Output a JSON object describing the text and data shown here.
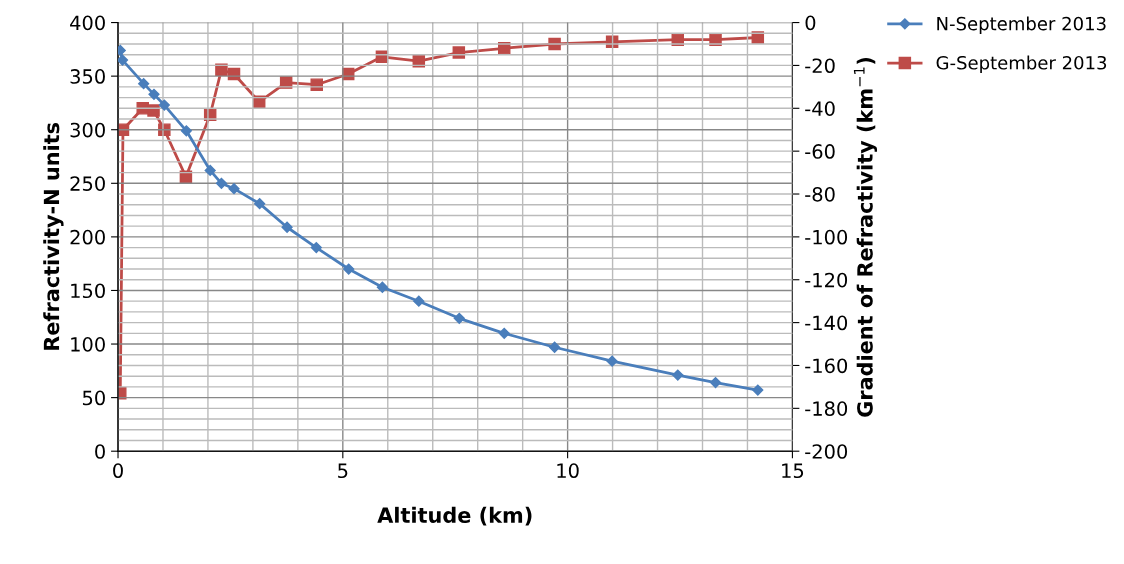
{
  "chart_data": {
    "type": "line",
    "xlabel": "Altitude (km)",
    "ylabel": "Refractivity-N units",
    "y2label": "Gradient of Refractivity (km$^{−1}$)",
    "xlim": [
      0,
      15
    ],
    "xticks": [
      0,
      5,
      10,
      15
    ],
    "ylim": [
      0,
      400
    ],
    "yticks": [
      0,
      50,
      100,
      150,
      200,
      250,
      300,
      350,
      400
    ],
    "y2lim": [
      -200,
      0
    ],
    "y2ticks": [
      -200,
      -180,
      -160,
      -140,
      -120,
      -100,
      -80,
      -60,
      -40,
      -20,
      0
    ],
    "grid": true,
    "legend": "top right",
    "line_style": "solid",
    "series": [
      {
        "name": "N-September 2013",
        "color": "#4a7ebb",
        "marker": "diamond",
        "x": [
          0.05,
          0.1,
          0.57,
          0.8,
          1.03,
          1.52,
          2.05,
          2.3,
          2.58,
          3.15,
          3.76,
          4.41,
          5.13,
          5.88,
          6.69,
          7.59,
          8.59,
          9.71,
          10.99,
          12.45,
          13.29,
          14.23
        ],
        "values": [
          374,
          365,
          343,
          333,
          323,
          299,
          262,
          250,
          245,
          231,
          209,
          190,
          170,
          153,
          140,
          124,
          110,
          97,
          84,
          71,
          64,
          57
        ]
      },
      {
        "name": "G-September 2013",
        "color": "#be4b48",
        "marker": "square",
        "axis": "y2",
        "x": [
          0.05,
          0.11,
          0.55,
          0.79,
          1.03,
          1.51,
          2.05,
          2.3,
          2.58,
          3.14,
          3.74,
          4.42,
          5.12,
          5.87,
          6.69,
          7.58,
          8.59,
          9.71,
          10.99,
          12.45,
          13.29,
          14.23
        ],
        "values": [
          -173,
          -50,
          -40,
          -41,
          -50,
          -72,
          -43,
          -22,
          -24,
          -37,
          -28,
          -29,
          -24,
          -16,
          -18,
          -14,
          -12,
          -10,
          -9,
          -8,
          -8,
          -7
        ]
      }
    ]
  }
}
